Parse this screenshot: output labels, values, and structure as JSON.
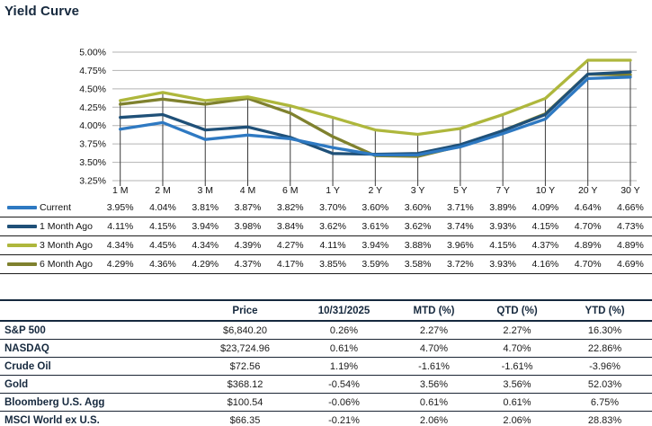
{
  "title": "Yield Curve",
  "colors": {
    "heading": "#16293e",
    "gridline": "#b3b3b3",
    "dropline": "#3a3a3a",
    "text": "#111111"
  },
  "chart_data": {
    "type": "line",
    "title": "Yield Curve",
    "categories": [
      "1 M",
      "2 M",
      "3 M",
      "4 M",
      "6 M",
      "1 Y",
      "2 Y",
      "3 Y",
      "5 Y",
      "7 Y",
      "10 Y",
      "20 Y",
      "30 Y"
    ],
    "y_tick_labels": [
      "5.00%",
      "4.75%",
      "4.50%",
      "4.25%",
      "4.00%",
      "3.75%",
      "3.50%",
      "3.25%"
    ],
    "ylim": [
      3.25,
      5.0
    ],
    "grid": true,
    "legend_position": "left-table",
    "series": [
      {
        "name": "Current",
        "color": "#2e79c2",
        "values": [
          3.95,
          4.04,
          3.81,
          3.87,
          3.82,
          3.7,
          3.6,
          3.6,
          3.71,
          3.89,
          4.09,
          4.64,
          4.66
        ]
      },
      {
        "name": "1 Month Ago",
        "color": "#1f5078",
        "values": [
          4.11,
          4.15,
          3.94,
          3.98,
          3.84,
          3.62,
          3.61,
          3.62,
          3.74,
          3.93,
          4.15,
          4.7,
          4.73
        ]
      },
      {
        "name": "3 Month Ago",
        "color": "#aeb73c",
        "values": [
          4.34,
          4.45,
          4.34,
          4.39,
          4.27,
          4.11,
          3.94,
          3.88,
          3.96,
          4.15,
          4.37,
          4.89,
          4.89
        ]
      },
      {
        "name": "6 Month Ago",
        "color": "#7f812e",
        "values": [
          4.29,
          4.36,
          4.29,
          4.37,
          4.17,
          3.85,
          3.59,
          3.58,
          3.72,
          3.93,
          4.16,
          4.7,
          4.69
        ]
      }
    ]
  },
  "markets_table": {
    "headers": [
      "",
      "Price",
      "10/31/2025",
      "MTD (%)",
      "QTD (%)",
      "YTD (%)"
    ],
    "rows": [
      {
        "label": "S&P 500",
        "price": "$6,840.20",
        "day": "0.26%",
        "mtd": "2.27%",
        "qtd": "2.27%",
        "ytd": "16.30%"
      },
      {
        "label": "NASDAQ",
        "price": "$23,724.96",
        "day": "0.61%",
        "mtd": "4.70%",
        "qtd": "4.70%",
        "ytd": "22.86%"
      },
      {
        "label": "Crude Oil",
        "price": "$72.56",
        "day": "1.19%",
        "mtd": "-1.61%",
        "qtd": "-1.61%",
        "ytd": "-3.96%"
      },
      {
        "label": "Gold",
        "price": "$368.12",
        "day": "-0.54%",
        "mtd": "3.56%",
        "qtd": "3.56%",
        "ytd": "52.03%"
      },
      {
        "label": "Bloomberg U.S. Agg",
        "price": "$100.54",
        "day": "-0.06%",
        "mtd": "0.61%",
        "qtd": "0.61%",
        "ytd": "6.75%"
      },
      {
        "label": "MSCI World ex U.S.",
        "price": "$66.35",
        "day": "-0.21%",
        "mtd": "2.06%",
        "qtd": "2.06%",
        "ytd": "28.83%"
      }
    ]
  }
}
